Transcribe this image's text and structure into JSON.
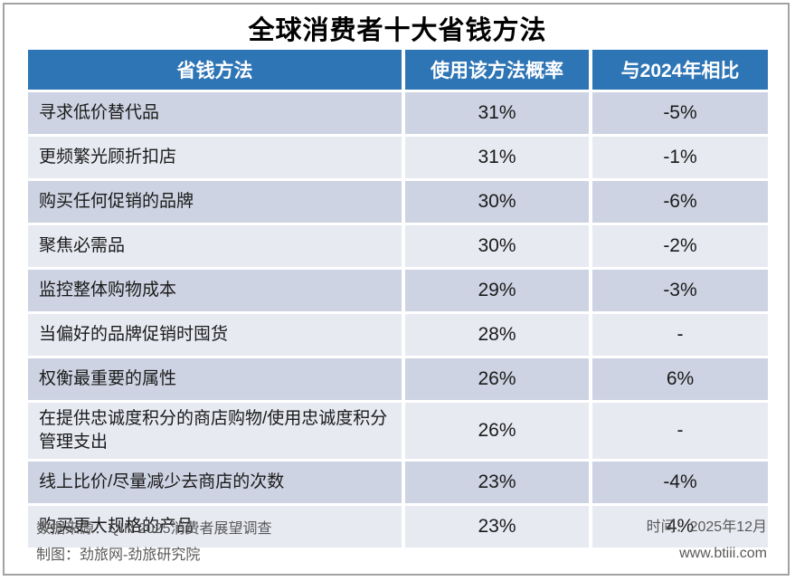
{
  "title": "全球消费者十大省钱方法",
  "table": {
    "headers": [
      "省钱方法",
      "使用该方法概率",
      "与2024年相比"
    ],
    "rows": [
      {
        "method": "寻求低价替代品",
        "probability": "31%",
        "vs2024": "-5%"
      },
      {
        "method": "更频繁光顾折扣店",
        "probability": "31%",
        "vs2024": "-1%"
      },
      {
        "method": "购买任何促销的品牌",
        "probability": "30%",
        "vs2024": "-6%"
      },
      {
        "method": "聚焦必需品",
        "probability": "30%",
        "vs2024": "-2%"
      },
      {
        "method": "监控整体购物成本",
        "probability": "29%",
        "vs2024": "-3%"
      },
      {
        "method": "当偏好的品牌促销时囤货",
        "probability": "28%",
        "vs2024": "-"
      },
      {
        "method": "权衡最重要的属性",
        "probability": "26%",
        "vs2024": "6%"
      },
      {
        "method": "在提供忠诚度积分的商店购物/使用忠诚度积分管理支出",
        "probability": "26%",
        "vs2024": "-"
      },
      {
        "method": "线上比价/尽量减少去商店的次数",
        "probability": "23%",
        "vs2024": "-4%"
      },
      {
        "method": "购买更大规格的产品",
        "probability": "23%",
        "vs2024": "4%"
      }
    ]
  },
  "footer": {
    "source_line": "数据来源：QIN 2025消费者展望调查",
    "credit_line": "制图：劲旅网-劲旅研究院",
    "time_line": "时间：2025年12月",
    "website": "www.btiii.com"
  },
  "colors": {
    "header_bg": "#2e75b6",
    "row_dark": "#cdd3e2",
    "row_light": "#e8eaf2",
    "frame_border": "#a3a3a3",
    "footer_text": "#595959"
  },
  "chart_data": {
    "type": "table",
    "title": "全球消费者十大省钱方法",
    "columns": [
      "省钱方法",
      "使用该方法概率",
      "与2024年相比"
    ],
    "rows": [
      [
        "寻求低价替代品",
        "31%",
        "-5%"
      ],
      [
        "更频繁光顾折扣店",
        "31%",
        "-1%"
      ],
      [
        "购买任何促销的品牌",
        "30%",
        "-6%"
      ],
      [
        "聚焦必需品",
        "30%",
        "-2%"
      ],
      [
        "监控整体购物成本",
        "29%",
        "-3%"
      ],
      [
        "当偏好的品牌促销时囤货",
        "28%",
        "-"
      ],
      [
        "权衡最重要的属性",
        "26%",
        "6%"
      ],
      [
        "在提供忠诚度积分的商店购物/使用忠诚度积分管理支出",
        "26%",
        "-"
      ],
      [
        "线上比价/尽量减少去商店的次数",
        "23%",
        "-4%"
      ],
      [
        "购买更大规格的产品",
        "23%",
        "4%"
      ]
    ],
    "notes": {
      "source": "数据来源：QIN 2025消费者展望调查",
      "credit": "制图：劲旅网-劲旅研究院",
      "time": "时间：2025年12月",
      "website": "www.btiii.com"
    }
  }
}
